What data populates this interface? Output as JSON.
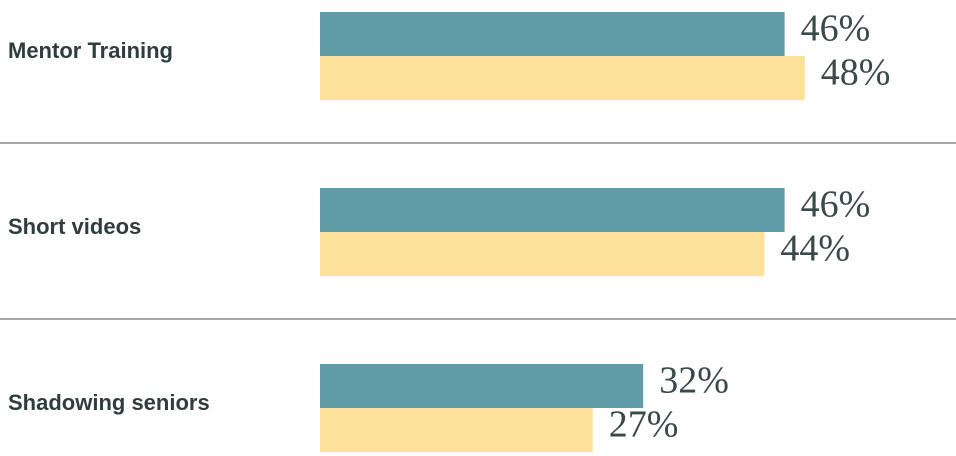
{
  "chart_data": {
    "type": "bar",
    "orientation": "horizontal",
    "categories": [
      "Mentor Training",
      "Short videos",
      "Shadowing seniors"
    ],
    "series": [
      {
        "color": "#5f9ea9",
        "values": [
          46,
          46,
          32
        ],
        "value_labels": [
          "46%",
          "46%",
          "32%"
        ]
      },
      {
        "color": "#fde199",
        "values": [
          48,
          44,
          27
        ],
        "value_labels": [
          "48%",
          "44%",
          "27%"
        ]
      }
    ]
  }
}
